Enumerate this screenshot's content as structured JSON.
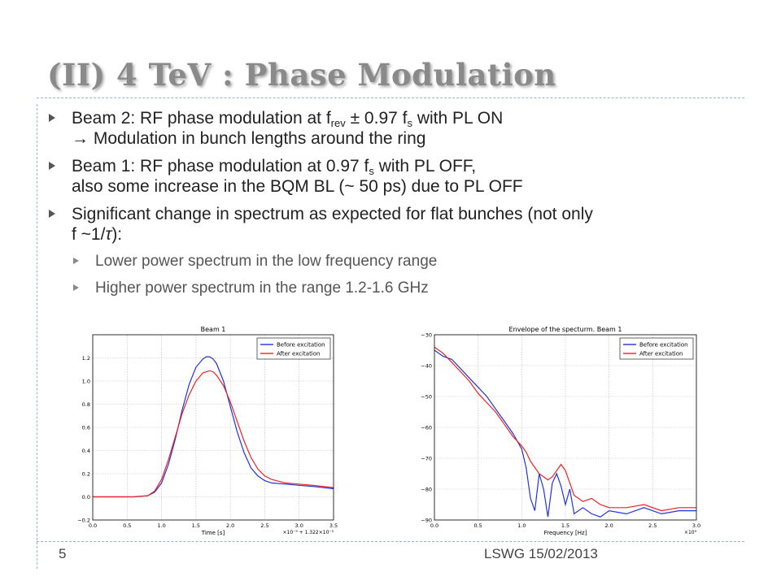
{
  "slide": {
    "title": "(II) 4 TeV : Phase Modulation",
    "bullets": [
      {
        "l1_pre": "Beam 2: RF phase modulation at f",
        "l1_sub1": "rev",
        "l1_mid": " ± 0.97 f",
        "l1_sub2": "s",
        "l1_post": " with PL ON",
        "l2": " Modulation in bunch lengths around the ring"
      },
      {
        "l1_pre": "Beam 1: RF phase modulation at 0.97 f",
        "l1_sub": "s",
        "l1_post": " with PL OFF,",
        "l2": "also some increase in the BQM BL (~ 50 ps) due to PL OFF"
      },
      {
        "l1": "Significant change in spectrum as expected for flat bunches (not only",
        "l2_pre": "f ~1/",
        "l2_tau": "τ",
        "l2_post": "):"
      }
    ],
    "subbullets": [
      "Lower power spectrum in the low frequency range",
      "Higher power spectrum in the range 1.2-1.6 GHz"
    ],
    "footer_page": "5",
    "footer_text": "LSWG   15/02/2013",
    "colors": {
      "title": "#8a8a8a",
      "before": "#2233dd",
      "after": "#ee2222",
      "divider": "#9bb3c7"
    }
  },
  "chart_data": [
    {
      "type": "line",
      "title": "Beam 1",
      "xlabel": "Time [s]",
      "offset_label": "×10⁻⁹ + 1.322×10⁻⁵",
      "xlim": [
        0.0,
        3.5
      ],
      "ylim": [
        -0.2,
        1.4
      ],
      "xticks": [
        "0.0",
        "0.5",
        "1.0",
        "1.5",
        "2.0",
        "2.5",
        "3.0",
        "3.5"
      ],
      "yticks": [
        "−0.2",
        "0.0",
        "0.2",
        "0.4",
        "0.6",
        "0.8",
        "1.0",
        "1.2"
      ],
      "legend": "top-right",
      "grid": true,
      "series": [
        {
          "name": "Before excitation",
          "color": "#2233dd",
          "x": [
            0,
            0.3,
            0.6,
            0.8,
            0.9,
            1.0,
            1.1,
            1.2,
            1.3,
            1.4,
            1.5,
            1.6,
            1.65,
            1.7,
            1.75,
            1.8,
            1.9,
            2.0,
            2.1,
            2.2,
            2.3,
            2.4,
            2.5,
            2.6,
            2.8,
            3.0,
            3.2,
            3.5
          ],
          "y": [
            0.0,
            0.0,
            0.0,
            0.01,
            0.04,
            0.12,
            0.28,
            0.5,
            0.75,
            0.97,
            1.12,
            1.19,
            1.21,
            1.21,
            1.19,
            1.15,
            1.0,
            0.78,
            0.56,
            0.38,
            0.25,
            0.18,
            0.14,
            0.12,
            0.11,
            0.1,
            0.09,
            0.07
          ]
        },
        {
          "name": "After excitation",
          "color": "#ee2222",
          "x": [
            0,
            0.3,
            0.6,
            0.8,
            0.9,
            1.0,
            1.1,
            1.2,
            1.3,
            1.4,
            1.5,
            1.6,
            1.7,
            1.75,
            1.8,
            1.9,
            2.0,
            2.1,
            2.2,
            2.3,
            2.4,
            2.5,
            2.6,
            2.8,
            3.0,
            3.2,
            3.5
          ],
          "y": [
            0.0,
            0.0,
            0.0,
            0.01,
            0.05,
            0.15,
            0.32,
            0.52,
            0.72,
            0.88,
            1.0,
            1.07,
            1.09,
            1.08,
            1.05,
            0.96,
            0.82,
            0.65,
            0.48,
            0.34,
            0.24,
            0.18,
            0.15,
            0.12,
            0.11,
            0.1,
            0.08
          ]
        }
      ]
    },
    {
      "type": "line",
      "title": "Envelope of the specturm. Beam 1",
      "xlabel": "Frequency [Hz]",
      "offset_label": "×10⁹",
      "xlim": [
        0.0,
        3.0
      ],
      "ylim": [
        -90,
        -30
      ],
      "xticks": [
        "0.0",
        "0.5",
        "1.0",
        "1.5",
        "2.0",
        "2.5",
        "3.0"
      ],
      "yticks": [
        "−30",
        "−40",
        "−50",
        "−60",
        "−70",
        "−80",
        "−90"
      ],
      "legend": "top-right",
      "grid": true,
      "series": [
        {
          "name": "Before excitation",
          "color": "#2233dd",
          "x": [
            0,
            0.1,
            0.2,
            0.3,
            0.4,
            0.5,
            0.6,
            0.7,
            0.8,
            0.9,
            1.0,
            1.05,
            1.1,
            1.15,
            1.2,
            1.25,
            1.3,
            1.35,
            1.4,
            1.45,
            1.5,
            1.55,
            1.6,
            1.7,
            1.8,
            1.9,
            2.0,
            2.2,
            2.4,
            2.6,
            2.8,
            3.0
          ],
          "y": [
            -35,
            -37,
            -38,
            -41,
            -44,
            -47,
            -50,
            -54,
            -58,
            -62,
            -67,
            -73,
            -83,
            -87,
            -75,
            -80,
            -89,
            -78,
            -75,
            -79,
            -85,
            -80,
            -88,
            -86,
            -88,
            -89,
            -87,
            -88,
            -86,
            -88,
            -87,
            -87
          ]
        },
        {
          "name": "After excitation",
          "color": "#ee2222",
          "x": [
            0,
            0.1,
            0.2,
            0.3,
            0.4,
            0.5,
            0.6,
            0.7,
            0.8,
            0.9,
            1.0,
            1.05,
            1.1,
            1.15,
            1.2,
            1.3,
            1.35,
            1.4,
            1.45,
            1.5,
            1.55,
            1.6,
            1.7,
            1.8,
            1.9,
            2.0,
            2.2,
            2.4,
            2.6,
            2.8,
            3.0
          ],
          "y": [
            -34,
            -36,
            -39,
            -42,
            -45,
            -49,
            -52,
            -55,
            -59,
            -63,
            -66,
            -68,
            -71,
            -73,
            -75,
            -77,
            -76,
            -74,
            -72,
            -74,
            -78,
            -82,
            -84,
            -83,
            -85,
            -86,
            -86,
            -85,
            -87,
            -86,
            -86
          ]
        }
      ]
    }
  ]
}
